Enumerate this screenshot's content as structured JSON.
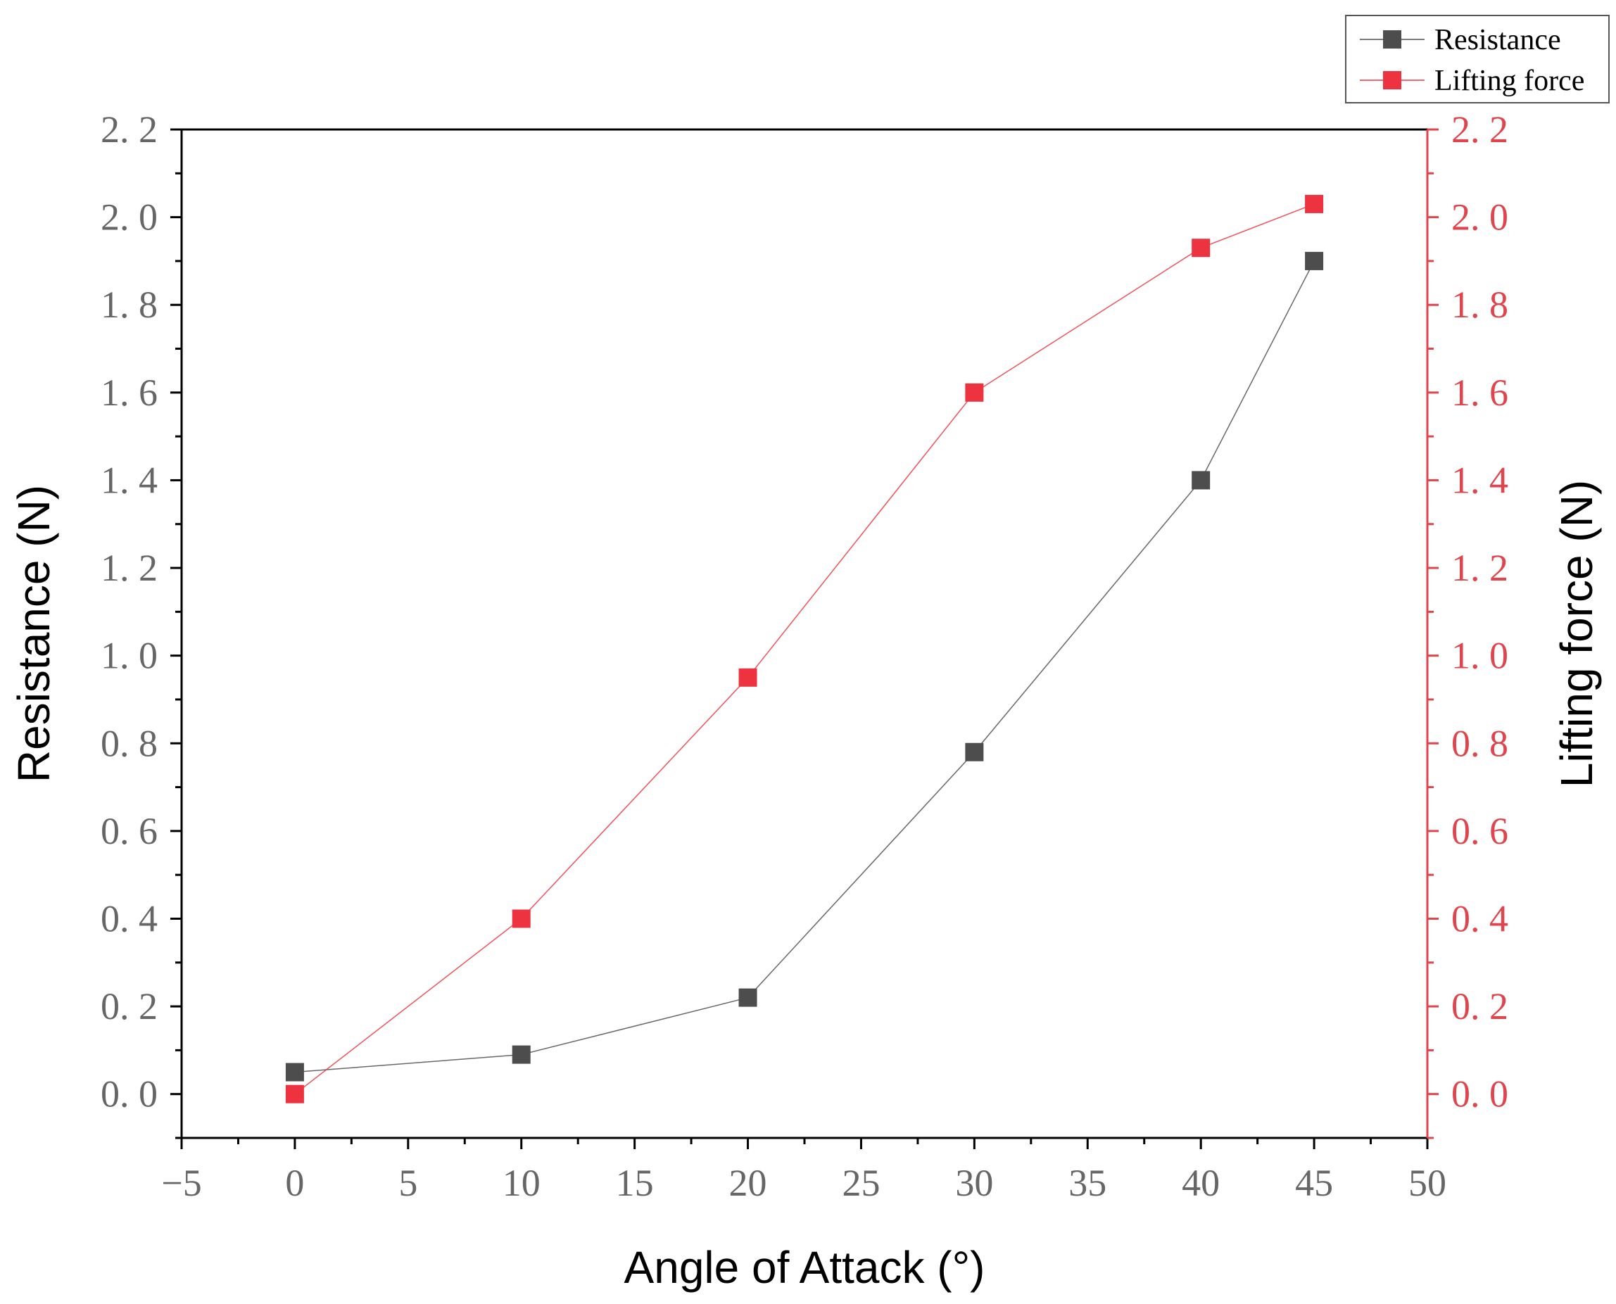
{
  "chart_data": {
    "type": "line",
    "xlabel": "Angle of Attack (°)",
    "ylabel_left": "Resistance (N)",
    "ylabel_right": "Lifting force (N)",
    "xlim": [
      -5,
      50
    ],
    "ylim_left": [
      -0.1,
      2.2
    ],
    "ylim_right": [
      -0.1,
      2.2
    ],
    "x_ticks": [
      -5,
      0,
      5,
      10,
      15,
      20,
      25,
      30,
      35,
      40,
      45,
      50
    ],
    "y_ticks": [
      "0.0",
      "0.2",
      "0.4",
      "0.6",
      "0.8",
      "1.0",
      "1.2",
      "1.4",
      "1.6",
      "1.8",
      "2.0",
      "2.2"
    ],
    "grid": false,
    "legend_position": "top-right",
    "x": [
      0,
      10,
      20,
      30,
      40,
      45
    ],
    "series": [
      {
        "name": "Resistance",
        "axis": "left",
        "color": "#4d4d4d",
        "values": [
          0.05,
          0.09,
          0.22,
          0.78,
          1.4,
          1.9
        ]
      },
      {
        "name": "Lifting force",
        "axis": "right",
        "color": "#ee3340",
        "values": [
          0.0,
          0.4,
          0.95,
          1.6,
          1.93,
          2.03
        ]
      }
    ],
    "colors": {
      "left_axis": "#000000",
      "right_axis": "#e0454d",
      "tick_text_left": "#666666"
    }
  }
}
